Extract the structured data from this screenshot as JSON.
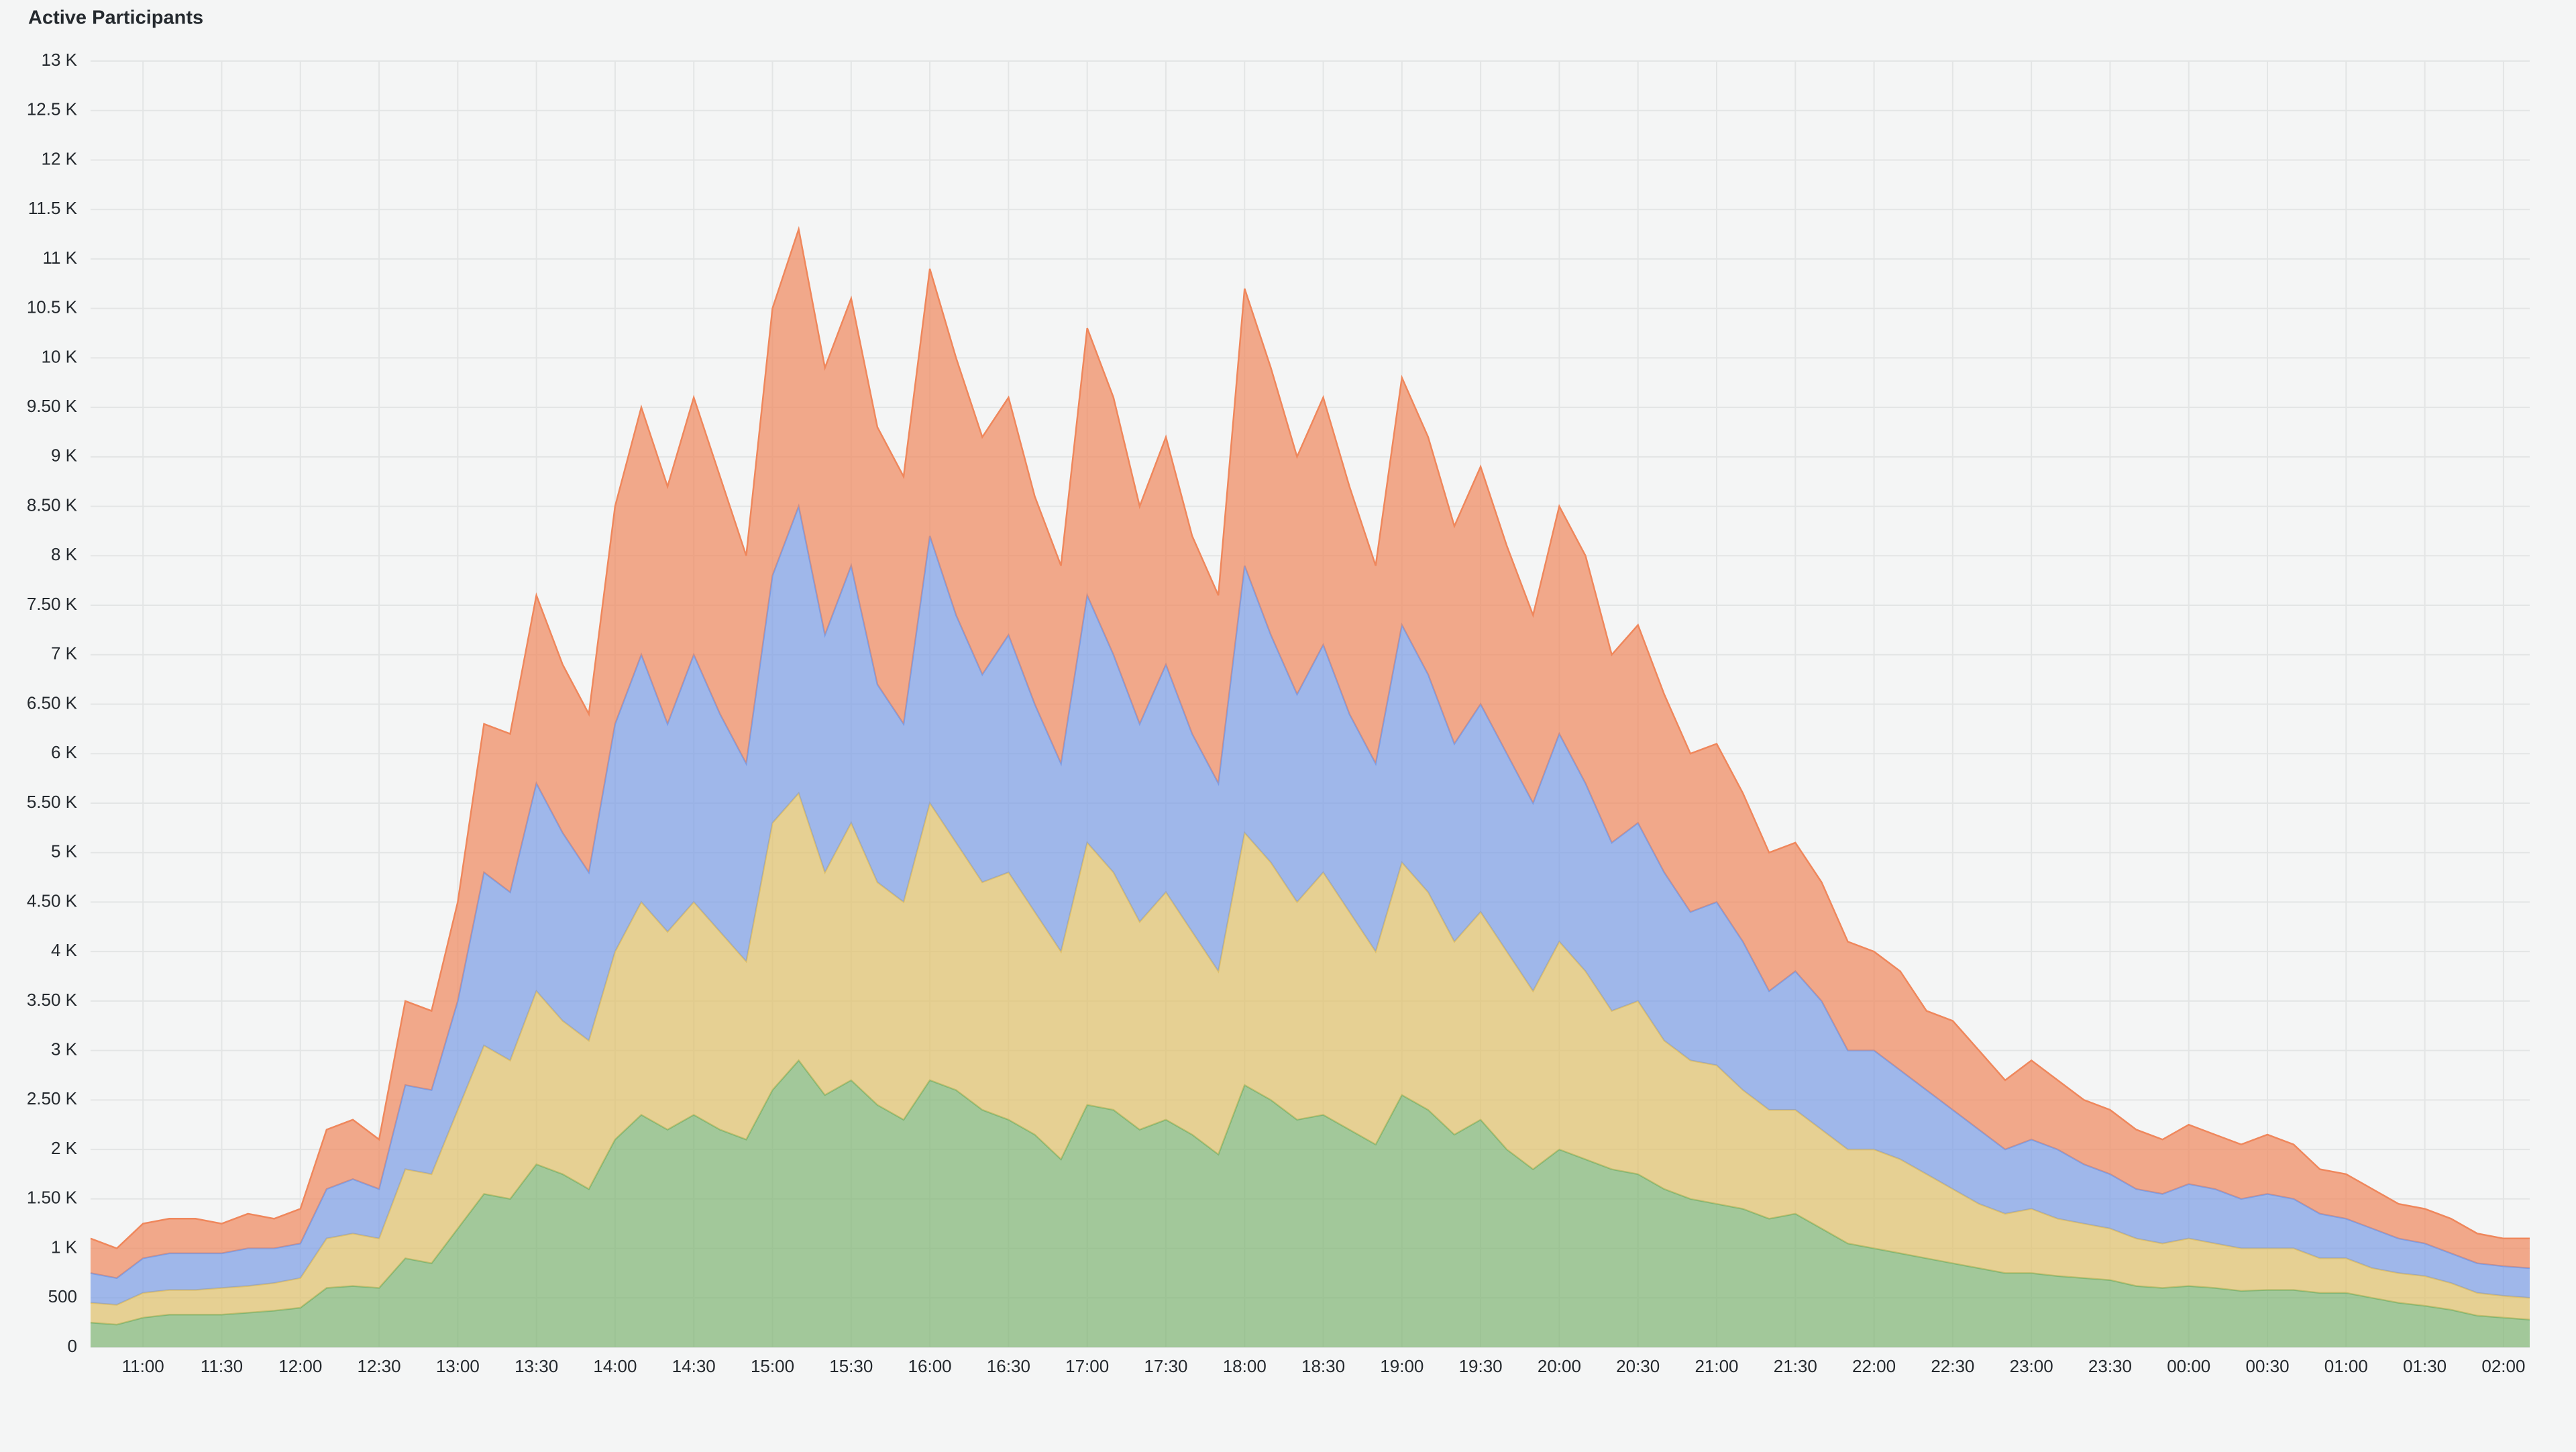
{
  "chart_data": {
    "type": "stacked-area",
    "title": "Active Participants",
    "x": [
      "10:40",
      "10:50",
      "11:00",
      "11:10",
      "11:20",
      "11:30",
      "11:40",
      "11:50",
      "12:00",
      "12:10",
      "12:20",
      "12:30",
      "12:40",
      "12:50",
      "13:00",
      "13:10",
      "13:20",
      "13:30",
      "13:40",
      "13:50",
      "14:00",
      "14:10",
      "14:20",
      "14:30",
      "14:40",
      "14:50",
      "15:00",
      "15:10",
      "15:20",
      "15:30",
      "15:40",
      "15:50",
      "16:00",
      "16:10",
      "16:20",
      "16:30",
      "16:40",
      "16:50",
      "17:00",
      "17:10",
      "17:20",
      "17:30",
      "17:40",
      "17:50",
      "18:00",
      "18:10",
      "18:20",
      "18:30",
      "18:40",
      "18:50",
      "19:00",
      "19:10",
      "19:20",
      "19:30",
      "19:40",
      "19:50",
      "20:00",
      "20:10",
      "20:20",
      "20:30",
      "20:40",
      "20:50",
      "21:00",
      "21:10",
      "21:20",
      "21:30",
      "21:40",
      "21:50",
      "22:00",
      "22:10",
      "22:20",
      "22:30",
      "22:40",
      "22:50",
      "23:00",
      "23:10",
      "23:20",
      "23:30",
      "23:40",
      "23:50",
      "00:00",
      "00:10",
      "00:20",
      "00:30",
      "00:40",
      "00:50",
      "01:00",
      "01:10",
      "01:20",
      "01:30",
      "01:40",
      "01:50",
      "02:00",
      "02:10"
    ],
    "xticks": [
      "11:00",
      "11:30",
      "12:00",
      "12:30",
      "13:00",
      "13:30",
      "14:00",
      "14:30",
      "15:00",
      "15:30",
      "16:00",
      "16:30",
      "17:00",
      "17:30",
      "18:00",
      "18:30",
      "19:00",
      "19:30",
      "20:00",
      "20:30",
      "21:00",
      "21:30",
      "22:00",
      "22:30",
      "23:00",
      "23:30",
      "00:00",
      "00:30",
      "01:00",
      "01:30",
      "02:00"
    ],
    "series": [
      {
        "color": "#7fb574",
        "values": [
          250,
          230,
          300,
          330,
          330,
          330,
          350,
          370,
          400,
          600,
          620,
          600,
          900,
          850,
          1200,
          1550,
          1500,
          1850,
          1750,
          1600,
          2100,
          2350,
          2200,
          2350,
          2200,
          2100,
          2600,
          2900,
          2550,
          2700,
          2450,
          2300,
          2700,
          2600,
          2400,
          2300,
          2150,
          1900,
          2450,
          2400,
          2200,
          2300,
          2150,
          1950,
          2650,
          2500,
          2300,
          2350,
          2200,
          2050,
          2550,
          2400,
          2150,
          2300,
          2000,
          1800,
          2000,
          1900,
          1800,
          1750,
          1600,
          1500,
          1450,
          1400,
          1300,
          1350,
          1200,
          1050,
          1000,
          950,
          900,
          850,
          800,
          750,
          750,
          720,
          700,
          680,
          620,
          600,
          620,
          600,
          570,
          580,
          580,
          550,
          550,
          500,
          450,
          420,
          380,
          320,
          300,
          280
        ]
      },
      {
        "color": "#e0c06a",
        "values": [
          200,
          200,
          250,
          250,
          250,
          270,
          270,
          280,
          300,
          500,
          530,
          500,
          900,
          900,
          1200,
          1500,
          1400,
          1750,
          1550,
          1500,
          1900,
          2150,
          2000,
          2150,
          2000,
          1800,
          2700,
          2700,
          2250,
          2600,
          2250,
          2200,
          2800,
          2500,
          2300,
          2500,
          2250,
          2100,
          2650,
          2400,
          2100,
          2300,
          2050,
          1850,
          2550,
          2400,
          2200,
          2450,
          2200,
          1950,
          2350,
          2200,
          1950,
          2100,
          2000,
          1800,
          2100,
          1900,
          1600,
          1750,
          1500,
          1400,
          1400,
          1200,
          1100,
          1050,
          1000,
          950,
          1000,
          950,
          850,
          750,
          650,
          600,
          650,
          580,
          550,
          520,
          480,
          450,
          480,
          450,
          430,
          420,
          420,
          350,
          350,
          300,
          300,
          300,
          270,
          230,
          220,
          220
        ]
      },
      {
        "color": "#7b9de6",
        "values": [
          300,
          270,
          350,
          370,
          370,
          350,
          380,
          350,
          350,
          500,
          550,
          500,
          850,
          850,
          1100,
          1750,
          1700,
          2100,
          1900,
          1700,
          2300,
          2500,
          2100,
          2500,
          2200,
          2000,
          2500,
          2900,
          2400,
          2600,
          2000,
          1800,
          2700,
          2300,
          2100,
          2400,
          2100,
          1900,
          2500,
          2200,
          2000,
          2300,
          2000,
          1900,
          2700,
          2300,
          2100,
          2300,
          2000,
          1900,
          2400,
          2200,
          2000,
          2100,
          2000,
          1900,
          2100,
          1900,
          1700,
          1800,
          1700,
          1500,
          1650,
          1500,
          1200,
          1400,
          1300,
          1000,
          1000,
          900,
          850,
          800,
          750,
          650,
          700,
          700,
          600,
          550,
          500,
          500,
          550,
          550,
          500,
          550,
          500,
          450,
          400,
          400,
          350,
          330,
          300,
          300,
          300,
          300
        ]
      },
      {
        "color": "#ef875c",
        "values": [
          350,
          300,
          350,
          350,
          350,
          300,
          350,
          300,
          350,
          600,
          600,
          500,
          850,
          800,
          1000,
          1500,
          1600,
          1900,
          1700,
          1600,
          2200,
          2500,
          2400,
          2600,
          2400,
          2100,
          2700,
          2800,
          2700,
          2700,
          2600,
          2500,
          2700,
          2600,
          2400,
          2400,
          2100,
          2000,
          2700,
          2600,
          2200,
          2300,
          2000,
          1900,
          2800,
          2700,
          2400,
          2500,
          2300,
          2000,
          2500,
          2400,
          2200,
          2400,
          2100,
          1900,
          2300,
          2300,
          1900,
          2000,
          1800,
          1600,
          1600,
          1500,
          1400,
          1300,
          1200,
          1100,
          1000,
          1000,
          800,
          900,
          800,
          700,
          800,
          700,
          650,
          650,
          600,
          550,
          600,
          550,
          550,
          600,
          550,
          450,
          450,
          400,
          350,
          350,
          350,
          300,
          280,
          300
        ]
      }
    ],
    "ylim": [
      0,
      13000
    ],
    "yticks": [
      0,
      500,
      {
        "value": 1000,
        "label": "1 K"
      },
      {
        "value": 1500,
        "label": "1.50 K"
      },
      {
        "value": 2000,
        "label": "2 K"
      },
      {
        "value": 2500,
        "label": "2.50 K"
      },
      {
        "value": 3000,
        "label": "3 K"
      },
      {
        "value": 3500,
        "label": "3.50 K"
      },
      {
        "value": 4000,
        "label": "4 K"
      },
      {
        "value": 4500,
        "label": "4.50 K"
      },
      {
        "value": 5000,
        "label": "5 K"
      },
      {
        "value": 5500,
        "label": "5.50 K"
      },
      {
        "value": 6000,
        "label": "6 K"
      },
      {
        "value": 6500,
        "label": "6.50 K"
      },
      {
        "value": 7000,
        "label": "7 K"
      },
      {
        "value": 7500,
        "label": "7.50 K"
      },
      {
        "value": 8000,
        "label": "8 K"
      },
      {
        "value": 8500,
        "label": "8.50 K"
      },
      {
        "value": 9000,
        "label": "9 K"
      },
      {
        "value": 9500,
        "label": "9.50 K"
      },
      {
        "value": 10000,
        "label": "10 K"
      },
      {
        "value": 10500,
        "label": "10.5 K"
      },
      {
        "value": 11000,
        "label": "11 K"
      },
      {
        "value": 11500,
        "label": "11.5 K"
      },
      {
        "value": 12000,
        "label": "12 K"
      },
      {
        "value": 12500,
        "label": "12.5 K"
      },
      {
        "value": 13000,
        "label": "13 K"
      }
    ],
    "grid": true
  }
}
